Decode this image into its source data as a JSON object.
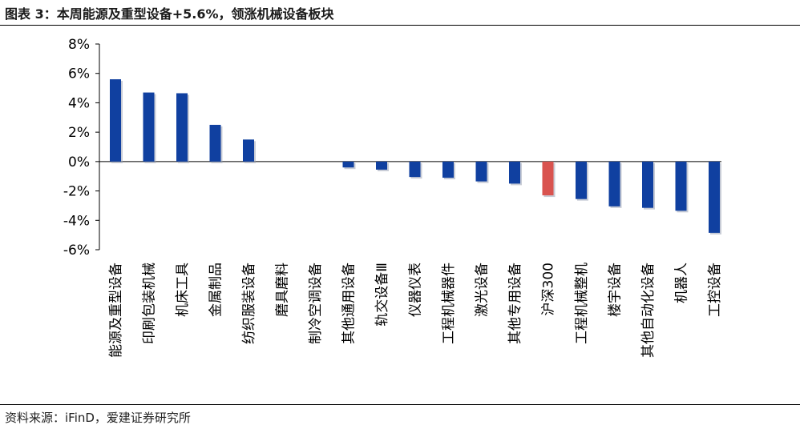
{
  "header": {
    "title": "图表 3：本周能源及重型设备+5.6%，领涨机械设备板块"
  },
  "footer": {
    "source": "资料来源：iFinD，爱建证券研究所"
  },
  "colors": {
    "positive_bar": "#1040A0",
    "highlight_bar": "#D9534F",
    "axis": "#000000"
  },
  "chart_data": {
    "type": "bar",
    "title": "",
    "xlabel": "",
    "ylabel": "",
    "ylim": [
      -6,
      8
    ],
    "yticks": [
      -6,
      -4,
      -2,
      0,
      2,
      4,
      6,
      8
    ],
    "ytick_labels": [
      "-6%",
      "-4%",
      "-2%",
      "0%",
      "2%",
      "4%",
      "6%",
      "8%"
    ],
    "grid": false,
    "legend": "none",
    "categories": [
      "能源及重型设备",
      "印刷包装机械",
      "机床工具",
      "金属制品",
      "纺织服装设备",
      "磨具磨料",
      "制冷空调设备",
      "其他通用设备",
      "轨交设备Ⅲ",
      "仪器仪表",
      "工程机械器件",
      "激光设备",
      "其他专用设备",
      "沪深300",
      "工程机械整机",
      "楼宇设备",
      "其他自动化设备",
      "机器人",
      "工控设备"
    ],
    "values": [
      5.6,
      4.7,
      4.65,
      2.5,
      1.5,
      0.0,
      0.0,
      -0.4,
      -0.55,
      -1.05,
      -1.1,
      -1.35,
      -1.5,
      -2.3,
      -2.55,
      -3.05,
      -3.15,
      -3.35,
      -4.85
    ],
    "highlight_category": "沪深300"
  }
}
